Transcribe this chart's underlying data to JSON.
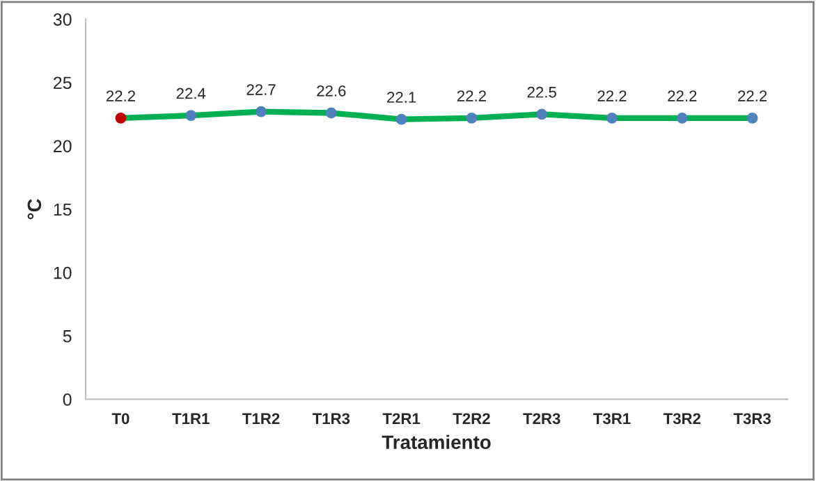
{
  "chart_data": {
    "type": "line",
    "xlabel": "Tratamiento",
    "ylabel": "°C",
    "categories": [
      "T0",
      "T1R1",
      "T1R2",
      "T1R3",
      "T2R1",
      "T2R2",
      "T2R3",
      "T3R1",
      "T3R2",
      "T3R3"
    ],
    "series": [
      {
        "color": "#00b050",
        "colors": [
          "#c00000",
          "#4f81bd",
          "#4f81bd",
          "#4f81bd",
          "#4f81bd",
          "#4f81bd",
          "#4f81bd",
          "#4f81bd",
          "#4f81bd",
          "#4f81bd"
        ],
        "values": [
          22.2,
          22.4,
          22.7,
          22.6,
          22.1,
          22.2,
          22.5,
          22.2,
          22.2,
          22.2
        ]
      }
    ],
    "ylim": [
      0,
      30
    ],
    "yticks": [
      0,
      5,
      10,
      15,
      20,
      25,
      30
    ],
    "grid": false,
    "legend": false,
    "marker": "circle",
    "line_style": "solid",
    "data_labels": true
  }
}
